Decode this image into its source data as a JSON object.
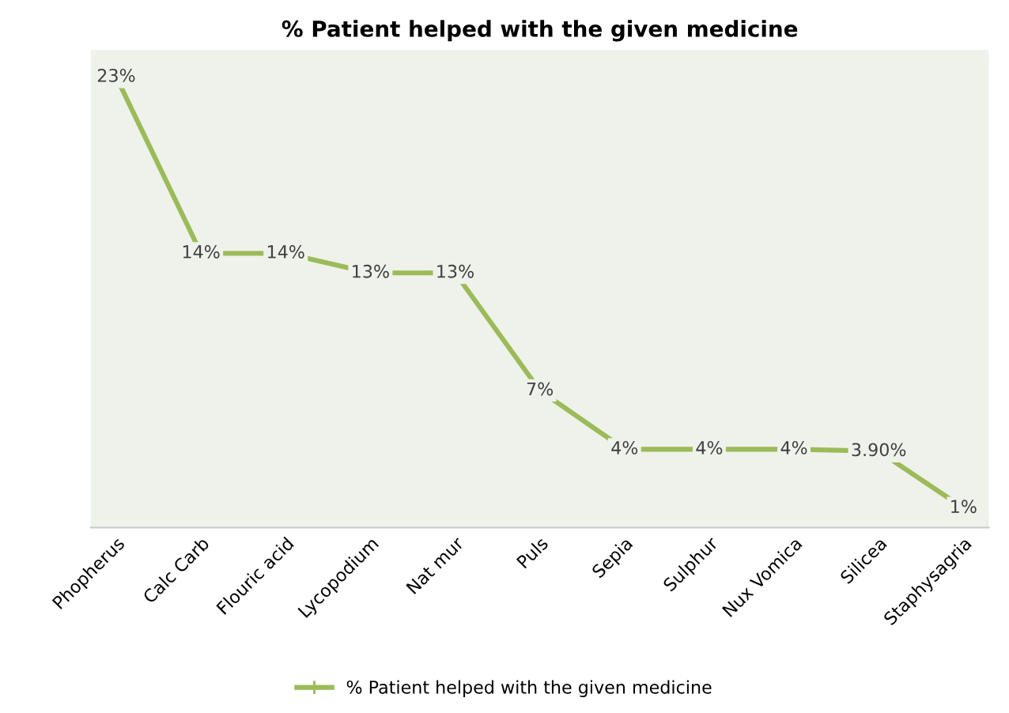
{
  "chart_data": {
    "type": "line",
    "title": "% Patient helped with the given medicine",
    "categories": [
      "Phopherus",
      "Calc Carb",
      "Flouric acid",
      "Lycopodium",
      "Nat mur",
      "Puls",
      "Sepia",
      "Sulphur",
      "Nux Vomica",
      "Silicea",
      "Staphysagria"
    ],
    "series": [
      {
        "name": "% Patient helped with the given medicine",
        "color": "#9bbb59",
        "values": [
          23,
          14,
          14,
          13,
          13,
          7,
          4,
          4,
          4,
          3.9,
          1
        ],
        "value_labels": [
          "23%",
          "14%",
          "14%",
          "13%",
          "13%",
          "7%",
          "4%",
          "4%",
          "4%",
          "3.90%",
          "1%"
        ]
      }
    ],
    "marker": "cross",
    "line_style": "solid",
    "legend": "bottom",
    "grid": false,
    "tick_labels": "x"
  }
}
